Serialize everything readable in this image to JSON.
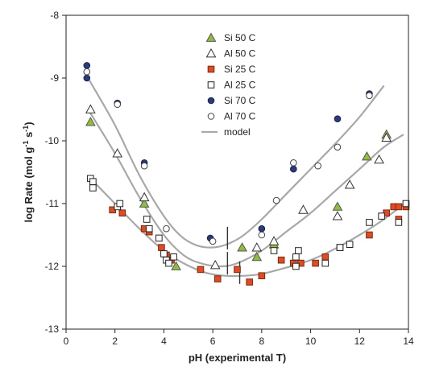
{
  "chart_data": {
    "type": "scatter",
    "xlabel": "pH (experimental T)",
    "ylabel_main": "log Rate (mol g",
    "ylabel_sup1": "-1",
    "ylabel_mid": " s",
    "ylabel_sup2": "-1",
    "ylabel_end": ")",
    "xlim": [
      0,
      14
    ],
    "ylim": [
      -13,
      -8
    ],
    "xticks": [
      "0",
      "2",
      "4",
      "6",
      "8",
      "10",
      "12",
      "14"
    ],
    "yticks": [
      "-8",
      "-9",
      "-10",
      "-11",
      "-12",
      "-13"
    ],
    "legend_position": "top-center",
    "series": [
      {
        "name": "Si 50 C",
        "marker": "triangle",
        "fill": "#8fbf3a",
        "stroke": "#555555",
        "points": [
          [
            1.0,
            -9.7
          ],
          [
            3.2,
            -11.0
          ],
          [
            4.5,
            -12.0
          ],
          [
            7.2,
            -11.7
          ],
          [
            7.8,
            -11.85
          ],
          [
            8.5,
            -11.65
          ],
          [
            11.1,
            -11.05
          ],
          [
            12.3,
            -10.25
          ],
          [
            13.1,
            -9.9
          ]
        ]
      },
      {
        "name": "Al 50 C",
        "marker": "triangle",
        "fill": "#ffffff",
        "stroke": "#333333",
        "points": [
          [
            1.0,
            -9.5
          ],
          [
            2.1,
            -10.2
          ],
          [
            3.2,
            -10.9
          ],
          [
            6.1,
            -11.98
          ],
          [
            7.8,
            -11.7
          ],
          [
            8.5,
            -11.6
          ],
          [
            9.7,
            -11.1
          ],
          [
            11.1,
            -11.2
          ],
          [
            11.6,
            -10.7
          ],
          [
            12.8,
            -10.3
          ],
          [
            13.1,
            -9.95
          ]
        ]
      },
      {
        "name": "Si 25 C",
        "marker": "square",
        "fill": "#e24a22",
        "stroke": "#7a2a12",
        "points": [
          [
            1.9,
            -11.1
          ],
          [
            2.3,
            -11.15
          ],
          [
            3.2,
            -11.4
          ],
          [
            3.4,
            -11.45
          ],
          [
            3.9,
            -11.7
          ],
          [
            4.1,
            -11.82
          ],
          [
            4.3,
            -11.9
          ],
          [
            5.5,
            -12.05
          ],
          [
            6.2,
            -12.2
          ],
          [
            7.0,
            -12.05
          ],
          [
            7.5,
            -12.25
          ],
          [
            8.0,
            -12.15
          ],
          [
            8.8,
            -11.9
          ],
          [
            9.3,
            -11.95
          ],
          [
            9.6,
            -11.95
          ],
          [
            10.2,
            -11.95
          ],
          [
            10.6,
            -11.85
          ],
          [
            11.2,
            -11.7
          ],
          [
            12.4,
            -11.5
          ],
          [
            13.1,
            -11.15
          ],
          [
            13.4,
            -11.05
          ],
          [
            13.6,
            -11.05
          ],
          [
            13.6,
            -11.25
          ],
          [
            13.9,
            -11.05
          ]
        ]
      },
      {
        "name": "Al 25 C",
        "marker": "square",
        "fill": "#ffffff",
        "stroke": "#222222",
        "points": [
          [
            1.0,
            -10.6
          ],
          [
            1.1,
            -10.65
          ],
          [
            1.1,
            -10.75
          ],
          [
            2.1,
            -11.05
          ],
          [
            2.2,
            -11.0
          ],
          [
            3.3,
            -11.25
          ],
          [
            3.4,
            -11.4
          ],
          [
            3.8,
            -11.55
          ],
          [
            4.0,
            -11.8
          ],
          [
            4.1,
            -11.9
          ],
          [
            4.2,
            -11.95
          ],
          [
            4.4,
            -11.85
          ],
          [
            8.5,
            -11.75
          ],
          [
            9.4,
            -11.85
          ],
          [
            9.5,
            -11.75
          ],
          [
            9.4,
            -12.0
          ],
          [
            10.6,
            -11.95
          ],
          [
            11.2,
            -11.7
          ],
          [
            11.6,
            -11.65
          ],
          [
            12.4,
            -11.3
          ],
          [
            12.9,
            -11.2
          ],
          [
            13.6,
            -11.3
          ],
          [
            13.9,
            -11.0
          ]
        ]
      },
      {
        "name": "Si 70 C",
        "marker": "circle",
        "fill": "#2a3a7a",
        "stroke": "#1a2350",
        "points": [
          [
            0.85,
            -8.8
          ],
          [
            0.85,
            -9.0
          ],
          [
            2.1,
            -9.4
          ],
          [
            3.2,
            -10.35
          ],
          [
            5.9,
            -11.55
          ],
          [
            8.0,
            -11.4
          ],
          [
            9.3,
            -10.45
          ],
          [
            11.1,
            -9.65
          ],
          [
            12.4,
            -9.25
          ]
        ]
      },
      {
        "name": "Al 70 C",
        "marker": "circle",
        "fill": "#ffffff",
        "stroke": "#444444",
        "points": [
          [
            0.85,
            -8.9
          ],
          [
            2.1,
            -9.42
          ],
          [
            3.2,
            -10.4
          ],
          [
            4.1,
            -11.4
          ],
          [
            6.0,
            -11.6
          ],
          [
            8.0,
            -11.5
          ],
          [
            8.6,
            -10.95
          ],
          [
            9.3,
            -10.35
          ],
          [
            10.3,
            -10.4
          ],
          [
            11.1,
            -10.1
          ],
          [
            12.4,
            -9.28
          ]
        ]
      }
    ],
    "model_name": "model",
    "model_color": "#a8a8a8",
    "model_curves": [
      [
        [
          0.9,
          -9.0
        ],
        [
          2.0,
          -9.75
        ],
        [
          3.0,
          -10.55
        ],
        [
          4.0,
          -11.2
        ],
        [
          4.7,
          -11.52
        ],
        [
          5.3,
          -11.66
        ],
        [
          5.9,
          -11.7
        ],
        [
          6.5,
          -11.66
        ],
        [
          7.2,
          -11.52
        ],
        [
          8.0,
          -11.25
        ],
        [
          9.0,
          -10.85
        ],
        [
          10.0,
          -10.45
        ],
        [
          11.0,
          -10.05
        ],
        [
          12.0,
          -9.62
        ],
        [
          13.0,
          -9.12
        ]
      ],
      [
        [
          0.9,
          -9.5
        ],
        [
          2.0,
          -10.2
        ],
        [
          3.0,
          -10.9
        ],
        [
          4.0,
          -11.5
        ],
        [
          4.8,
          -11.82
        ],
        [
          5.5,
          -11.95
        ],
        [
          6.3,
          -12.0
        ],
        [
          7.0,
          -11.95
        ],
        [
          8.0,
          -11.75
        ],
        [
          9.0,
          -11.45
        ],
        [
          10.0,
          -11.15
        ],
        [
          11.0,
          -10.8
        ],
        [
          12.0,
          -10.45
        ],
        [
          13.0,
          -10.1
        ],
        [
          13.8,
          -9.9
        ]
      ],
      [
        [
          1.0,
          -10.6
        ],
        [
          2.0,
          -11.0
        ],
        [
          3.0,
          -11.4
        ],
        [
          4.0,
          -11.75
        ],
        [
          4.8,
          -11.95
        ],
        [
          5.7,
          -12.1
        ],
        [
          6.5,
          -12.15
        ],
        [
          7.3,
          -12.15
        ],
        [
          8.0,
          -12.12
        ],
        [
          9.0,
          -12.02
        ],
        [
          10.0,
          -11.9
        ],
        [
          11.0,
          -11.72
        ],
        [
          12.0,
          -11.5
        ],
        [
          13.0,
          -11.25
        ],
        [
          13.9,
          -10.98
        ]
      ]
    ],
    "model_markers": [
      [
        6.6,
        -11.55
      ],
      [
        6.6,
        -11.95
      ],
      [
        7.1,
        -12.1
      ]
    ]
  }
}
